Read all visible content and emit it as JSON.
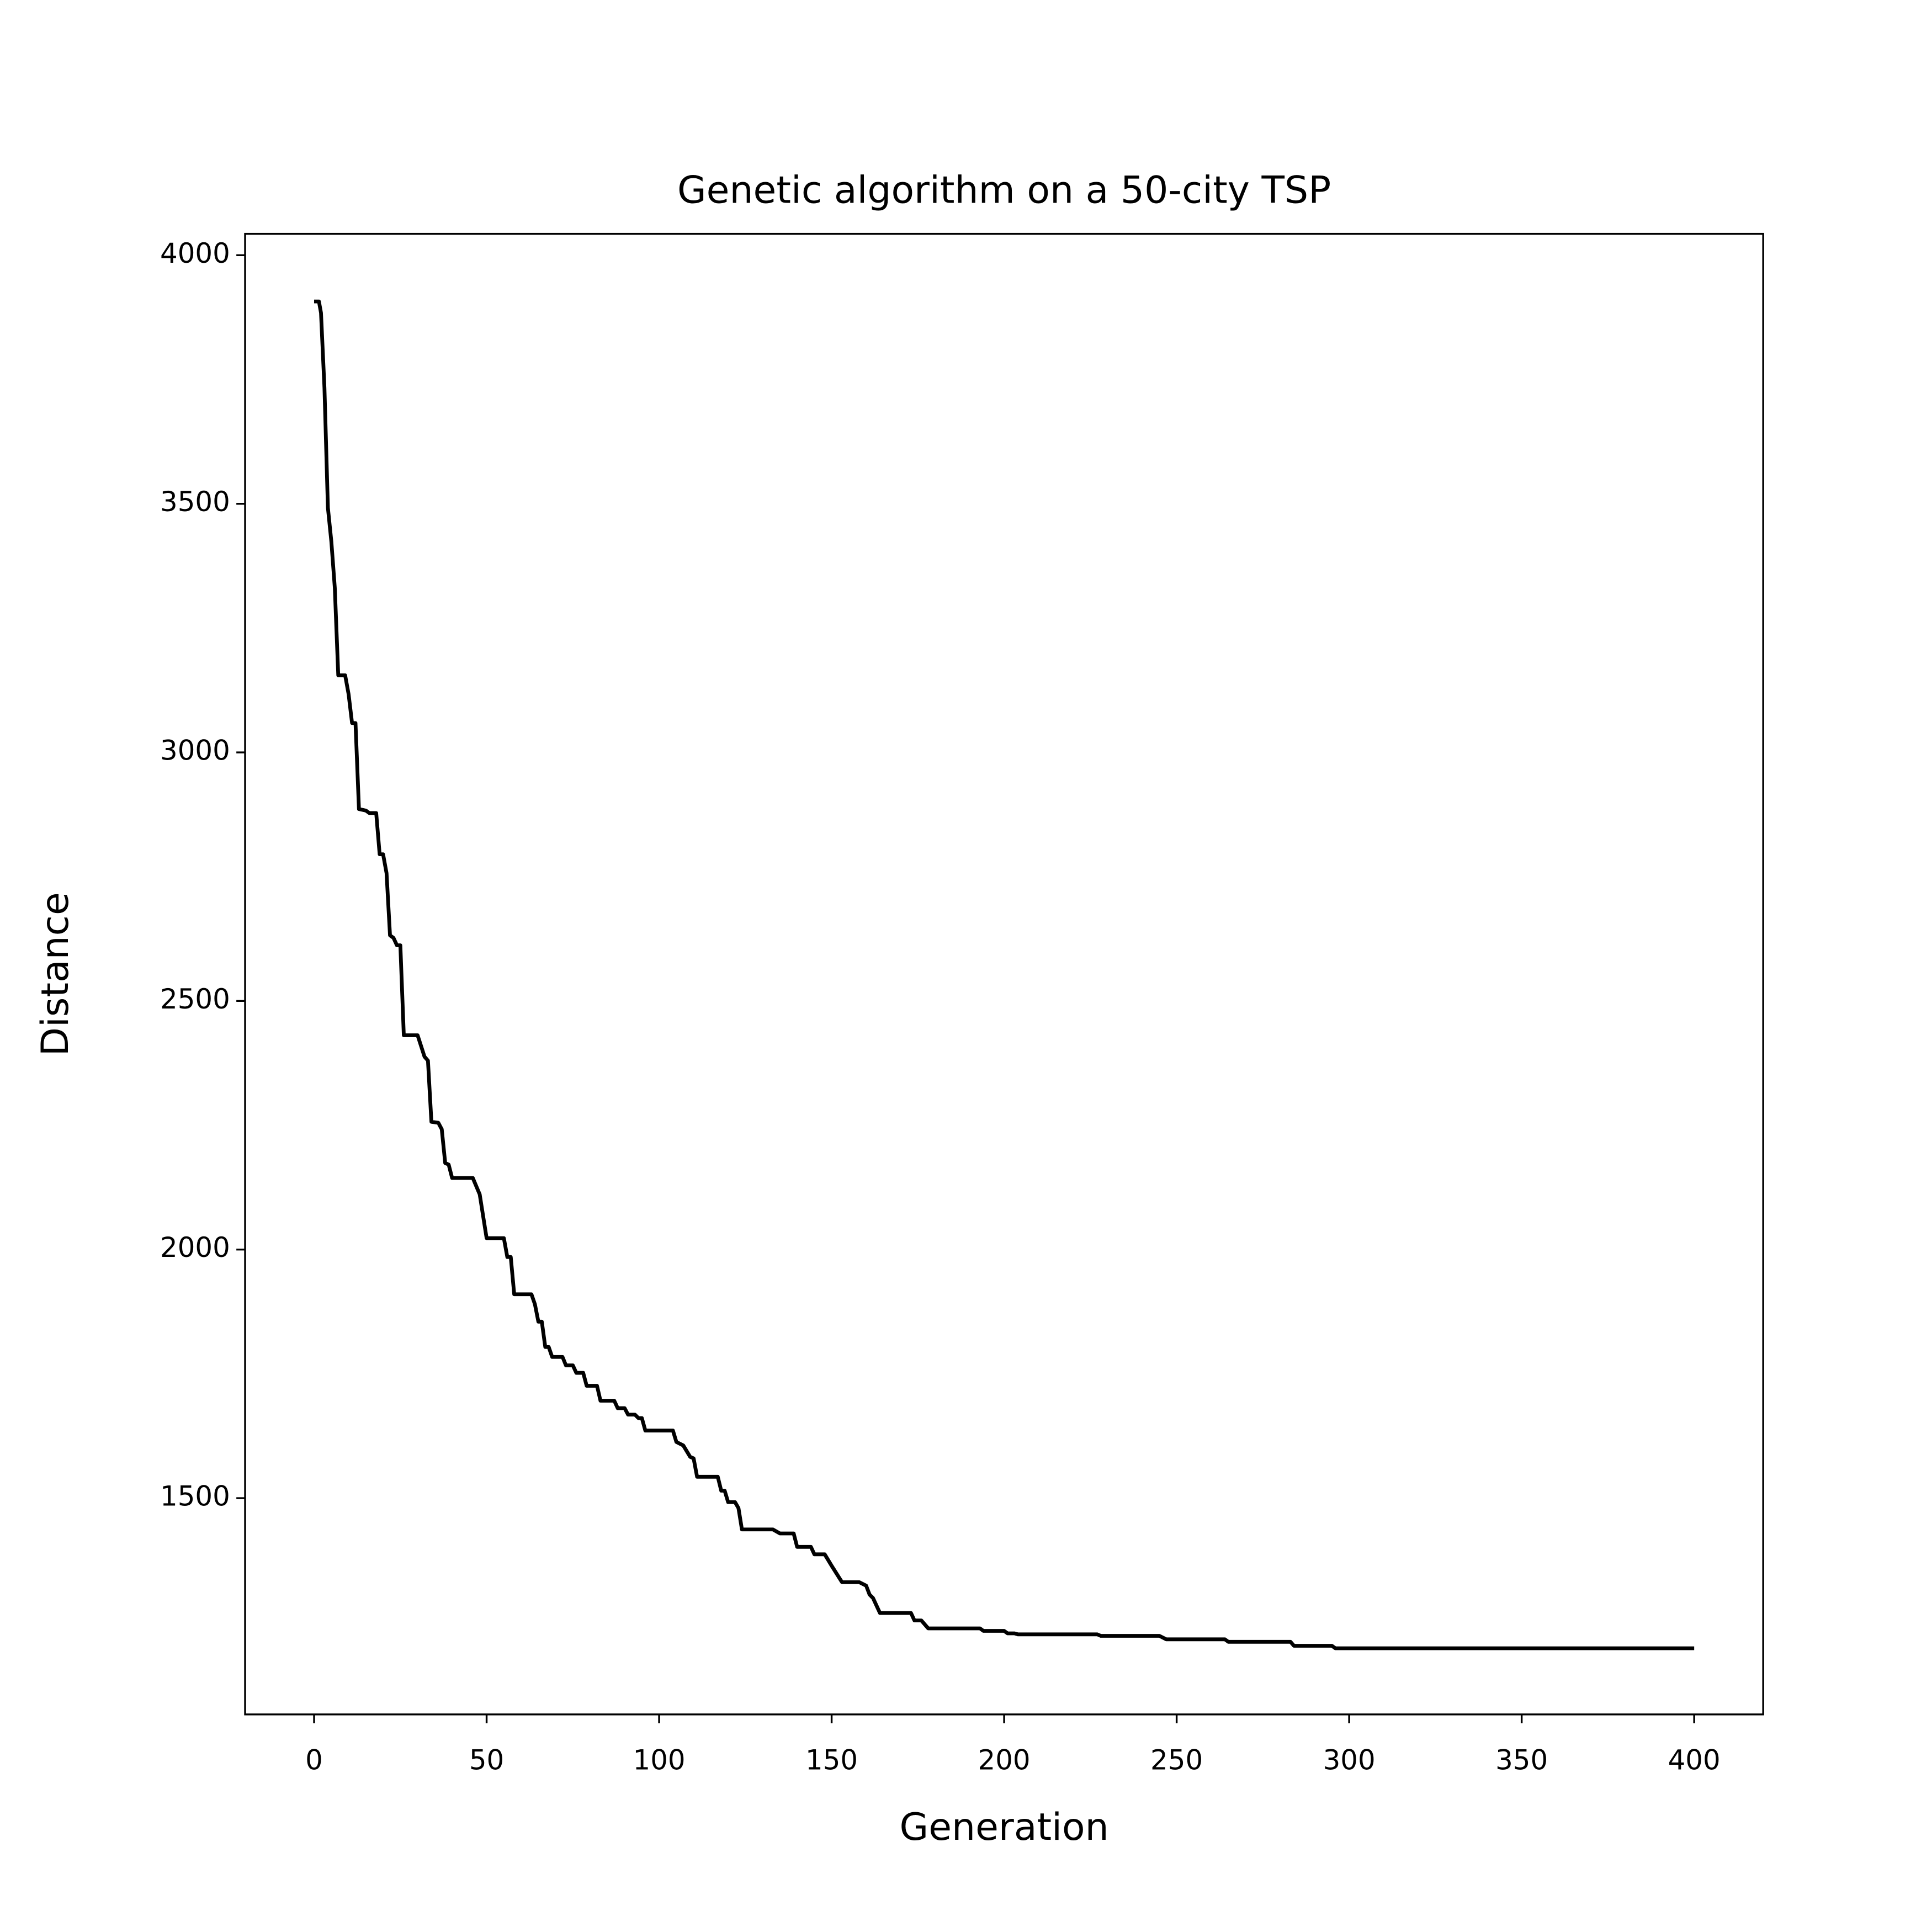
{
  "chart_data": {
    "type": "line",
    "title": "Genetic algorithm on a 50-city TSP",
    "x_label": "Generation",
    "y_label": "Distance",
    "xlim": [
      -20,
      420
    ],
    "ylim": [
      1065,
      4043
    ],
    "xticks": [
      0,
      50,
      100,
      150,
      200,
      250,
      300,
      350,
      400
    ],
    "yticks": [
      1500,
      2000,
      2500,
      3000,
      3500,
      4000
    ],
    "grid": false,
    "series": [
      {
        "color": "#000000",
        "x": [
          0,
          1.4,
          2,
          3,
          4,
          5,
          6,
          7,
          9,
          10,
          11,
          12,
          13,
          15,
          16,
          18,
          19,
          20,
          21,
          22,
          23,
          24,
          25,
          26,
          30,
          32,
          33,
          34,
          36,
          37,
          38,
          39,
          40,
          46,
          48,
          50,
          55,
          56,
          57,
          58,
          63,
          64,
          65,
          66,
          67,
          68,
          69,
          72,
          73,
          75,
          76,
          78,
          79,
          82,
          83,
          87,
          88,
          90,
          91,
          93,
          94,
          95,
          96,
          104,
          105,
          107,
          109,
          110,
          111,
          117,
          118,
          119,
          120,
          122,
          123,
          124,
          133,
          135,
          139,
          140,
          144,
          145,
          148,
          150,
          153,
          158,
          160,
          161,
          162,
          164,
          173,
          174,
          176,
          178,
          193,
          194,
          200,
          201,
          203,
          204,
          227,
          228,
          245,
          247,
          264,
          265,
          283,
          284,
          295,
          296,
          400
        ],
        "values": [
          3907,
          3907,
          3884,
          3733,
          3492,
          3424,
          3331,
          3155,
          3155,
          3117,
          3059,
          3059,
          2886,
          2883,
          2878,
          2878,
          2795,
          2795,
          2757,
          2632,
          2627,
          2612,
          2612,
          2431,
          2431,
          2388,
          2380,
          2257,
          2255,
          2242,
          2174,
          2171,
          2144,
          2144,
          2111,
          2023,
          2023,
          1985,
          1985,
          1910,
          1910,
          1890,
          1855,
          1855,
          1804,
          1804,
          1784,
          1784,
          1767,
          1767,
          1752,
          1752,
          1726,
          1726,
          1696,
          1696,
          1681,
          1681,
          1668,
          1668,
          1661,
          1661,
          1636,
          1636,
          1613,
          1606,
          1583,
          1580,
          1543,
          1543,
          1515,
          1515,
          1492,
          1492,
          1480,
          1437,
          1437,
          1429,
          1429,
          1402,
          1402,
          1387,
          1387,
          1364,
          1331,
          1331,
          1324,
          1306,
          1299,
          1269,
          1269,
          1254,
          1254,
          1238,
          1238,
          1233,
          1233,
          1228,
          1228,
          1226,
          1226,
          1223,
          1223,
          1216,
          1216,
          1211,
          1211,
          1203,
          1203,
          1198,
          1198
        ]
      }
    ]
  }
}
